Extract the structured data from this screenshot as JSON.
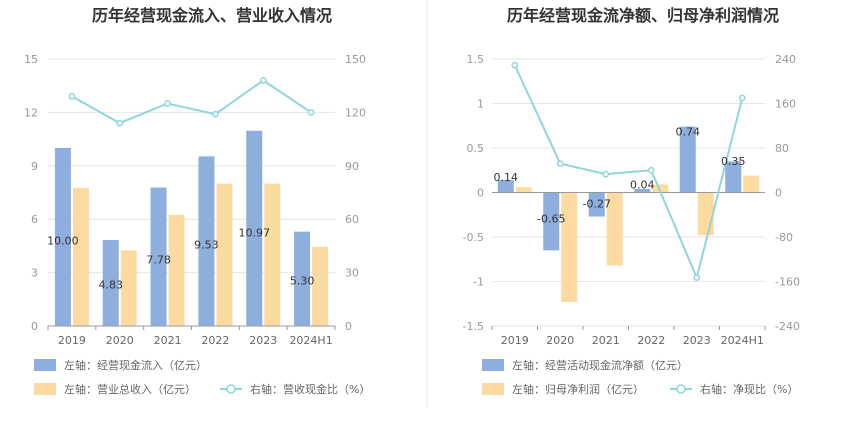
{
  "chart_data": [
    {
      "type": "bar+line",
      "title": "历年经营现金流入、营业收入情况",
      "categories": [
        "2019",
        "2020",
        "2021",
        "2022",
        "2023",
        "2024H1"
      ],
      "left_axis": {
        "ylim": [
          0,
          15
        ],
        "ticks": [
          "0",
          "3",
          "6",
          "9",
          "12",
          "15"
        ]
      },
      "right_axis": {
        "ylim": [
          0,
          150
        ],
        "ticks": [
          "0",
          "30",
          "60",
          "90",
          "120",
          "150"
        ]
      },
      "series": [
        {
          "name": "左轴：经营现金流入（亿元）",
          "kind": "bar",
          "axis": "left",
          "color": "#8eaedd",
          "values": [
            10.0,
            4.83,
            7.78,
            9.53,
            10.97,
            5.3
          ],
          "labels": [
            "10.00",
            "4.83",
            "7.78",
            "9.53",
            "10.97",
            "5.30"
          ]
        },
        {
          "name": "左轴：营业总收入（亿元）",
          "kind": "bar",
          "axis": "left",
          "color": "#fddba0",
          "values": [
            7.75,
            4.25,
            6.25,
            8.0,
            8.0,
            4.45
          ]
        },
        {
          "name": "右轴：营收现金比（%）",
          "kind": "line",
          "axis": "right",
          "color": "#8fd6dc",
          "values": [
            129,
            114,
            125,
            119,
            138,
            120
          ]
        }
      ],
      "grid": true,
      "legend": "bottom-left"
    },
    {
      "type": "bar+line",
      "title": "历年经营现金流净额、归母净利润情况",
      "categories": [
        "2019",
        "2020",
        "2021",
        "2022",
        "2023",
        "2024H1"
      ],
      "left_axis": {
        "ylim": [
          -1.5,
          1.5
        ],
        "ticks": [
          "-1.5",
          "-1",
          "-0.5",
          "0",
          "0.5",
          "1",
          "1.5"
        ]
      },
      "right_axis": {
        "ylim": [
          -240,
          240
        ],
        "ticks": [
          "-240",
          "-160",
          "-80",
          "0",
          "80",
          "160",
          "240"
        ]
      },
      "series": [
        {
          "name": "左轴：经营活动现金流净额（亿元）",
          "kind": "bar",
          "axis": "left",
          "color": "#8eaedd",
          "values": [
            0.14,
            -0.65,
            -0.27,
            0.04,
            0.74,
            0.35
          ],
          "labels": [
            "0.14",
            "-0.65",
            "-0.27",
            "0.04",
            "0.74",
            "0.35"
          ]
        },
        {
          "name": "左轴：归母净利润（亿元）",
          "kind": "bar",
          "axis": "left",
          "color": "#fddba0",
          "values": [
            0.06,
            -1.23,
            -0.82,
            0.09,
            -0.48,
            0.19
          ]
        },
        {
          "name": "右轴：净现比（%）",
          "kind": "line",
          "axis": "right",
          "color": "#8fd6dc",
          "values": [
            229,
            52,
            33,
            40,
            -153,
            170
          ]
        }
      ],
      "grid": true,
      "legend": "bottom-left"
    }
  ]
}
